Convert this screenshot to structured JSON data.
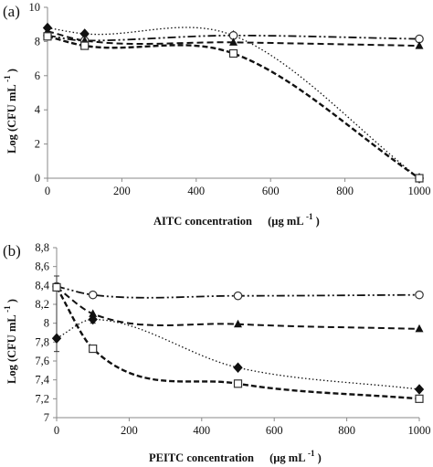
{
  "chart_data": [
    {
      "type": "line",
      "panel_label": "(a)",
      "xlabel": "AITC concentration",
      "xunit": "(µg mL",
      "xunit_sup": "-1",
      "xunit_close": ")",
      "ylabel": "Log (CFU mL",
      "ylabel_sup": "-1",
      "ylabel_close": ")",
      "xlim": [
        0,
        1000
      ],
      "ylim": [
        0,
        10
      ],
      "x_ticks": [
        "0",
        "200",
        "400",
        "600",
        "800",
        "1000"
      ],
      "y_ticks": [
        "0",
        "2",
        "4",
        "6",
        "8",
        "10"
      ],
      "grid": false,
      "legend": "none",
      "series": [
        {
          "marker": "filled-diamond",
          "line": "dotted",
          "x": [
            0,
            100,
            500,
            1000
          ],
          "y": [
            8.8,
            8.45,
            8.35,
            0
          ]
        },
        {
          "marker": "open-circle",
          "line": "dash-dot-dot",
          "x": [
            0,
            100,
            500,
            1000
          ],
          "y": [
            8.35,
            8.05,
            8.35,
            8.15
          ]
        },
        {
          "marker": "filled-triangle",
          "line": "dashed",
          "x": [
            0,
            100,
            500,
            1000
          ],
          "y": [
            8.6,
            8.05,
            7.95,
            7.75
          ]
        },
        {
          "marker": "open-square",
          "line": "dashed-heavy",
          "x": [
            0,
            100,
            500,
            1000
          ],
          "y": [
            8.3,
            7.75,
            7.3,
            0
          ]
        }
      ]
    },
    {
      "type": "line",
      "panel_label": "(b)",
      "xlabel": "PEITC concentration",
      "xunit": "(µg mL",
      "xunit_sup": "-1",
      "xunit_close": ")",
      "ylabel": "Log (CFU mL",
      "ylabel_sup": "-1",
      "ylabel_close": ")",
      "xlim": [
        0,
        1000
      ],
      "ylim": [
        7,
        8.8
      ],
      "x_ticks": [
        "0",
        "200",
        "400",
        "600",
        "800",
        "1000"
      ],
      "y_ticks": [
        "7",
        "7,2",
        "7,4",
        "7,6",
        "7,8",
        "8",
        "8,2",
        "8,4",
        "8,6",
        "8,8"
      ],
      "grid": false,
      "legend": "none",
      "series": [
        {
          "marker": "filled-diamond",
          "line": "dotted",
          "x": [
            0,
            100,
            500,
            1000
          ],
          "y": [
            7.84,
            8.04,
            7.53,
            7.3
          ]
        },
        {
          "marker": "open-circle",
          "line": "dash-dot-dot",
          "x": [
            0,
            100,
            500,
            1000
          ],
          "y": [
            8.39,
            8.3,
            8.29,
            8.3
          ]
        },
        {
          "marker": "filled-triangle",
          "line": "dashed",
          "x": [
            0,
            100,
            500,
            1000
          ],
          "y": [
            8.38,
            8.1,
            7.99,
            7.94
          ]
        },
        {
          "marker": "open-square",
          "line": "dashed-heavy",
          "x": [
            0,
            100,
            500,
            1000
          ],
          "y": [
            8.38,
            7.73,
            7.36,
            7.2
          ]
        }
      ],
      "error_bars": [
        {
          "series": 0,
          "x": 0,
          "low": 7.7,
          "high": 8.5
        },
        {
          "series": 0,
          "x": 100,
          "low": 8.0,
          "high": 8.09
        }
      ]
    }
  ]
}
